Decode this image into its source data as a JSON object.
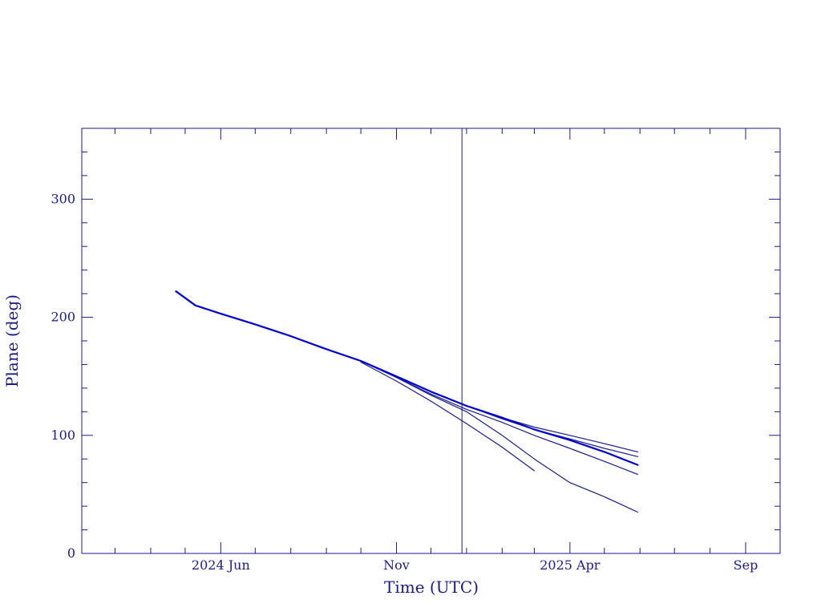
{
  "chart_data": {
    "type": "line",
    "xlabel": "Time (UTC)",
    "ylabel": "Plane (deg)",
    "xlim": [
      "2024-02-01",
      "2025-10-01"
    ],
    "ylim": [
      0,
      360
    ],
    "x_major_ticks": [
      {
        "date": "2024-06-01",
        "label": "2024 Jun"
      },
      {
        "date": "2024-11-01",
        "label": "Nov"
      },
      {
        "date": "2025-04-01",
        "label": "2025 Apr"
      },
      {
        "date": "2025-09-01",
        "label": "Sep"
      }
    ],
    "x_minor_ticks": [
      "2024-03-01",
      "2024-04-01",
      "2024-05-01",
      "2024-07-01",
      "2024-08-01",
      "2024-09-01",
      "2024-10-01",
      "2024-12-01",
      "2025-01-01",
      "2025-02-01",
      "2025-03-01",
      "2025-05-01",
      "2025-06-01",
      "2025-07-01",
      "2025-08-01"
    ],
    "y_major_ticks": [
      0,
      100,
      200,
      300
    ],
    "y_minor_step": 20,
    "vline_date": "2024-12-28",
    "series": [
      {
        "style": "main",
        "x": [
          "2024-04-23",
          "2024-05-10",
          "2024-06-01",
          "2024-07-01",
          "2024-08-01",
          "2024-09-01",
          "2024-10-01",
          "2024-11-01",
          "2024-12-01",
          "2025-01-01",
          "2025-02-01",
          "2025-03-01",
          "2025-04-01",
          "2025-05-01",
          "2025-05-30"
        ],
        "y": [
          222,
          210,
          203,
          194,
          184,
          173,
          163,
          150,
          137,
          125,
          115,
          105,
          96,
          86,
          75
        ]
      },
      {
        "style": "thin",
        "x": [
          "2024-10-01",
          "2024-11-01",
          "2024-12-01",
          "2025-01-01",
          "2025-02-01",
          "2025-03-01",
          "2025-04-01",
          "2025-05-01",
          "2025-05-30"
        ],
        "y": [
          163,
          150,
          137,
          125,
          115,
          107,
          100,
          93,
          86
        ]
      },
      {
        "style": "thin",
        "x": [
          "2024-10-01",
          "2024-11-01",
          "2024-12-01",
          "2025-01-01",
          "2025-02-01",
          "2025-03-01",
          "2025-04-01",
          "2025-05-01",
          "2025-05-30"
        ],
        "y": [
          163,
          150,
          137,
          125,
          114,
          105,
          97,
          89,
          82
        ]
      },
      {
        "style": "thin",
        "x": [
          "2024-10-01",
          "2024-11-01",
          "2024-12-01",
          "2025-01-01",
          "2025-02-01",
          "2025-03-01",
          "2025-04-01",
          "2025-05-01",
          "2025-05-30"
        ],
        "y": [
          163,
          149,
          135,
          122,
          111,
          100,
          89,
          78,
          67
        ]
      },
      {
        "style": "thin",
        "x": [
          "2024-10-01",
          "2024-11-01",
          "2024-12-01",
          "2025-01-01",
          "2025-02-01",
          "2025-03-01",
          "2025-04-01",
          "2025-05-01",
          "2025-05-30"
        ],
        "y": [
          163,
          149,
          134,
          120,
          100,
          80,
          60,
          48,
          35
        ]
      },
      {
        "style": "thin",
        "x": [
          "2024-10-01",
          "2024-11-01",
          "2024-12-01",
          "2025-01-01",
          "2025-02-01",
          "2025-03-01"
        ],
        "y": [
          162,
          146,
          129,
          110,
          90,
          70
        ]
      }
    ]
  }
}
